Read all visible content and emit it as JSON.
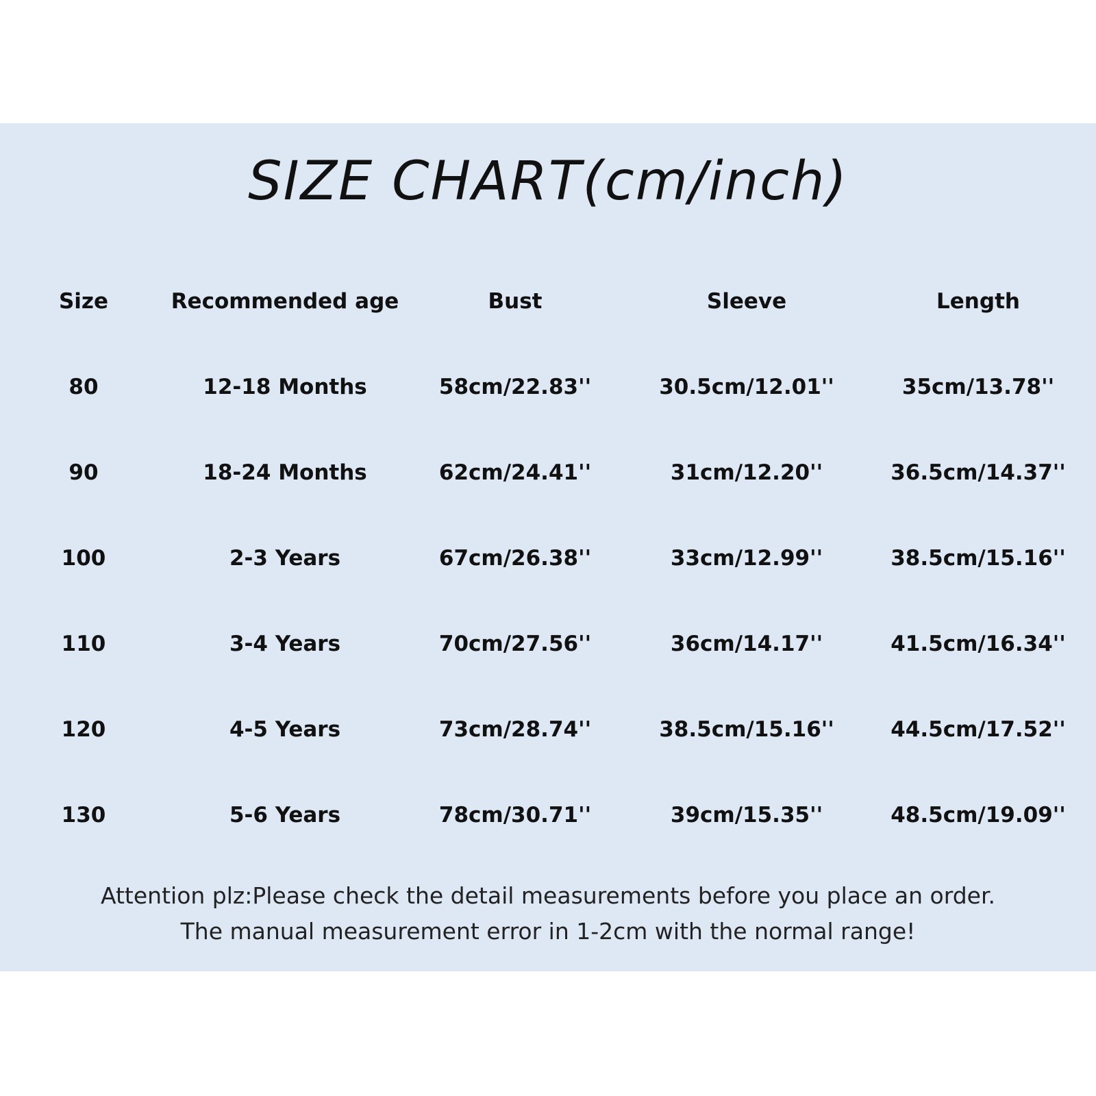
{
  "title": "SIZE CHART(cm/inch)",
  "colors": {
    "background_band": "#dde8f4",
    "page": "#ffffff",
    "text": "#111111"
  },
  "table": {
    "headers": [
      "Size",
      "Recommended age",
      "Bust",
      "Sleeve",
      "Length"
    ],
    "rows": [
      [
        "80",
        "12-18 Months",
        "58cm/22.83''",
        "30.5cm/12.01''",
        "35cm/13.78''"
      ],
      [
        "90",
        "18-24 Months",
        "62cm/24.41''",
        "31cm/12.20''",
        "36.5cm/14.37''"
      ],
      [
        "100",
        "2-3 Years",
        "67cm/26.38''",
        "33cm/12.99''",
        "38.5cm/15.16''"
      ],
      [
        "110",
        "3-4 Years",
        "70cm/27.56''",
        "36cm/14.17''",
        "41.5cm/16.34''"
      ],
      [
        "120",
        "4-5 Years",
        "73cm/28.74''",
        "38.5cm/15.16''",
        "44.5cm/17.52''"
      ],
      [
        "130",
        "5-6 Years",
        "78cm/30.71''",
        "39cm/15.35''",
        "48.5cm/19.09''"
      ]
    ]
  },
  "notes": [
    "Attention plz:Please check the detail measurements before you place an order.",
    "The manual measurement error in 1-2cm with the normal range!"
  ]
}
